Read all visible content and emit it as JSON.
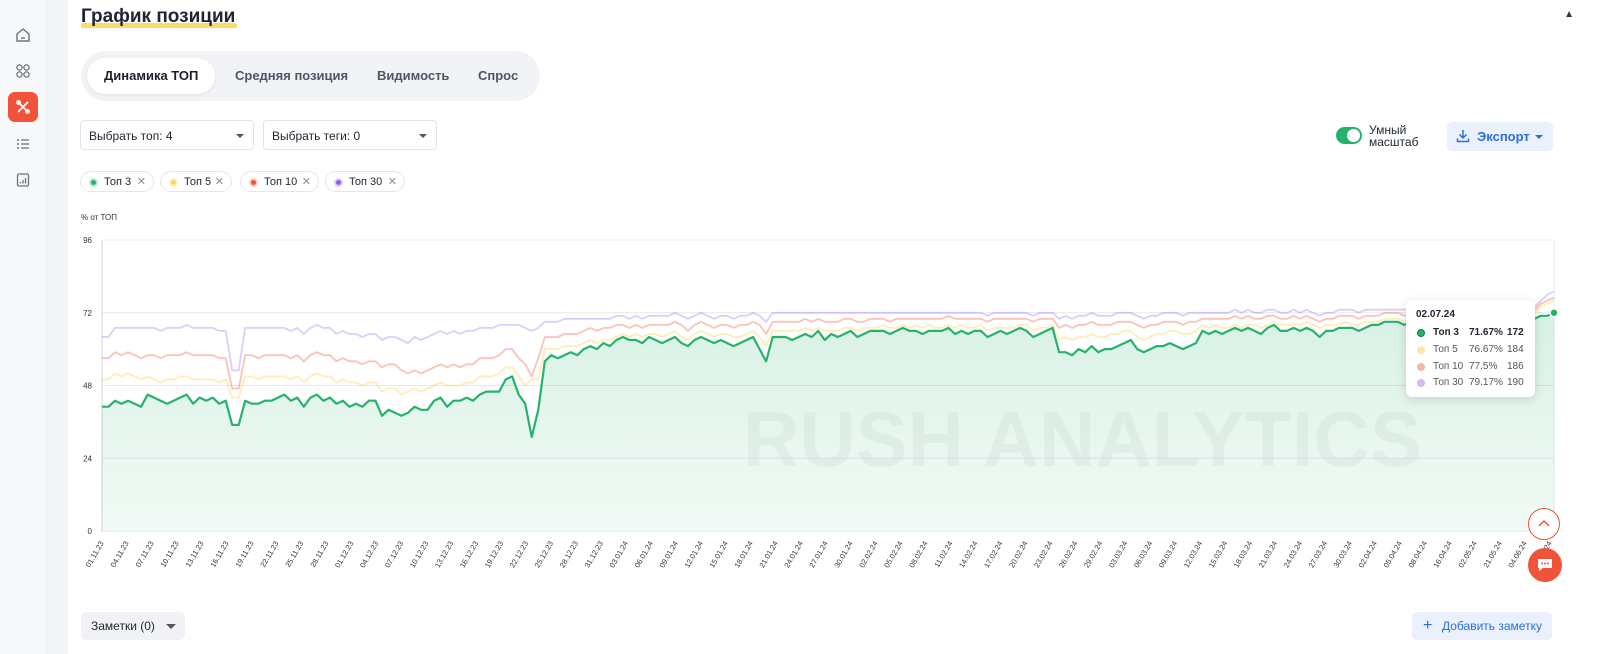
{
  "section": {
    "title": "График позиции"
  },
  "tabs": [
    {
      "label": "Динамика ТОП",
      "active": true
    },
    {
      "label": "Средняя позиция",
      "active": false
    },
    {
      "label": "Видимость",
      "active": false
    },
    {
      "label": "Спрос",
      "active": false
    }
  ],
  "filters": {
    "top_select": "Выбрать топ: 4",
    "tags_select": "Выбрать теги: 0"
  },
  "smart_scale": {
    "label": "Умный масштаб",
    "enabled": true
  },
  "export": {
    "label": "Экспорт"
  },
  "legend_chips": [
    {
      "label": "Топ 3",
      "color": "#26b26d"
    },
    {
      "label": "Топ 5",
      "color": "#ffd564"
    },
    {
      "label": "Топ 10",
      "color": "#f0533a"
    },
    {
      "label": "Топ 30",
      "color": "#8b5cf6"
    }
  ],
  "tooltip": {
    "date": "02.07.24",
    "rows": [
      {
        "name": "Топ 3",
        "percent": "71.67%",
        "count": "172",
        "color": "#26b26d"
      },
      {
        "name": "Топ 5",
        "percent": "76.67%",
        "count": "184",
        "color": "#ffe4a8"
      },
      {
        "name": "Топ 10",
        "percent": "77.5%",
        "count": "186",
        "color": "#f8b6aa"
      },
      {
        "name": "Топ 30",
        "percent": "79.17%",
        "count": "190",
        "color": "#cdbdf6"
      }
    ]
  },
  "footer": {
    "notes_label": "Заметки (0)",
    "add_note_label": "Добавить заметку"
  },
  "icons": {
    "sidebar": [
      "home-icon",
      "grid-icon",
      "tools-icon",
      "list-icon",
      "report-icon"
    ],
    "export": "download-icon",
    "fab": [
      "scroll-up-icon",
      "chat-icon"
    ]
  },
  "chart_data": {
    "type": "line",
    "ylabel": "% от ТОП",
    "ylim": [
      0,
      96
    ],
    "yticks": [
      0,
      24,
      48,
      72,
      96
    ],
    "grid": true,
    "watermark": "RUSH ANALYTICS",
    "xtick_labels": [
      "01.11.23",
      "04.11.23",
      "07.11.23",
      "10.11.23",
      "13.11.23",
      "16.11.23",
      "19.11.23",
      "22.11.23",
      "25.11.23",
      "28.11.23",
      "01.12.23",
      "04.12.23",
      "07.12.23",
      "10.12.23",
      "13.12.23",
      "16.12.23",
      "19.12.23",
      "22.12.23",
      "25.12.23",
      "28.12.23",
      "31.12.23",
      "03.01.24",
      "06.01.24",
      "09.01.24",
      "12.01.24",
      "15.01.24",
      "18.01.24",
      "21.01.24",
      "24.01.24",
      "27.01.24",
      "30.01.24",
      "02.02.24",
      "05.02.24",
      "08.02.24",
      "11.02.24",
      "14.02.24",
      "17.02.24",
      "20.02.24",
      "23.02.24",
      "26.02.24",
      "29.02.24",
      "03.03.24",
      "06.03.24",
      "09.03.24",
      "12.03.24",
      "15.03.24",
      "18.03.24",
      "21.03.24",
      "24.03.24",
      "27.03.24",
      "30.03.24",
      "02.04.24",
      "05.04.24",
      "08.04.24",
      "16.04.24",
      "02.05.24",
      "21.05.24",
      "04.06.24",
      "21.06.24"
    ],
    "series": [
      {
        "name": "Топ 3",
        "color": "#26b26d",
        "values": [
          41,
          41,
          43,
          42,
          43,
          42,
          41,
          45,
          44,
          43,
          42,
          43,
          44,
          45,
          42,
          44,
          43,
          44,
          42,
          43,
          35,
          35,
          43,
          42,
          42,
          43,
          43,
          44,
          45,
          43,
          44,
          41,
          44,
          45,
          43,
          44,
          42,
          43,
          41,
          42,
          41,
          43,
          43,
          38,
          40,
          39,
          38,
          39,
          41,
          40,
          40,
          43,
          44,
          41,
          43,
          43,
          44,
          43,
          45,
          46,
          46,
          46,
          50,
          51,
          45,
          42,
          31,
          40,
          56,
          58,
          57,
          58,
          59,
          58,
          60,
          61,
          60,
          62,
          61,
          63,
          64,
          63,
          63,
          62,
          64,
          63,
          62,
          63,
          64,
          62,
          61,
          63,
          64,
          63,
          62,
          63,
          62,
          61,
          62,
          63,
          64,
          60,
          56,
          64,
          64,
          64,
          63,
          64,
          65,
          64,
          66,
          63,
          65,
          64,
          65,
          66,
          64,
          65,
          66,
          66,
          66,
          65,
          66,
          67,
          66,
          66,
          65,
          66,
          66,
          66,
          67,
          65,
          66,
          65,
          66,
          66,
          64,
          65,
          66,
          65,
          66,
          67,
          66,
          64,
          65,
          66,
          67,
          59,
          59,
          58,
          60,
          59,
          61,
          59,
          60,
          60,
          61,
          62,
          63,
          60,
          59,
          60,
          61,
          61,
          62,
          61,
          60,
          61,
          62,
          66,
          65,
          66,
          65,
          66,
          67,
          66,
          67,
          66,
          65,
          67,
          68,
          66,
          66,
          67,
          66,
          67,
          66,
          64,
          66,
          66,
          67,
          67,
          67,
          66,
          67,
          68,
          68,
          69,
          69,
          69,
          68,
          69,
          68,
          67,
          68,
          68,
          68,
          69,
          67,
          68,
          68,
          68,
          68,
          69,
          70,
          70,
          69,
          70,
          70,
          69,
          70,
          71,
          71,
          72
        ]
      },
      {
        "name": "Топ 5",
        "color": "#ffd564",
        "values": [
          50,
          50,
          52,
          51,
          52,
          51,
          50,
          51,
          50,
          49,
          50,
          50,
          51,
          51,
          50,
          50,
          50,
          50,
          49,
          50,
          44,
          44,
          51,
          51,
          50,
          51,
          51,
          51,
          51,
          50,
          51,
          49,
          51,
          52,
          51,
          51,
          49,
          50,
          49,
          49,
          48,
          49,
          49,
          46,
          47,
          47,
          45,
          46,
          47,
          46,
          47,
          48,
          49,
          48,
          48,
          48,
          49,
          49,
          51,
          51,
          51,
          52,
          54,
          54,
          51,
          48,
          50,
          50,
          60,
          60,
          60,
          61,
          61,
          61,
          62,
          63,
          62,
          63,
          63,
          64,
          65,
          64,
          65,
          64,
          65,
          65,
          64,
          65,
          66,
          64,
          63,
          65,
          66,
          65,
          64,
          65,
          65,
          64,
          64,
          65,
          66,
          64,
          61,
          66,
          66,
          66,
          66,
          66,
          67,
          66,
          67,
          66,
          66,
          66,
          67,
          67,
          66,
          67,
          67,
          67,
          68,
          67,
          67,
          68,
          67,
          68,
          67,
          68,
          67,
          67,
          68,
          67,
          68,
          67,
          67,
          68,
          66,
          67,
          67,
          67,
          67,
          68,
          68,
          66,
          67,
          67,
          68,
          63,
          64,
          63,
          64,
          64,
          65,
          64,
          64,
          65,
          65,
          66,
          66,
          64,
          63,
          64,
          65,
          65,
          66,
          66,
          65,
          65,
          66,
          68,
          67,
          68,
          67,
          67,
          68,
          67,
          68,
          68,
          67,
          68,
          69,
          68,
          68,
          68,
          68,
          69,
          68,
          67,
          68,
          68,
          68,
          69,
          68,
          68,
          69,
          69,
          69,
          70,
          70,
          70,
          69,
          70,
          70,
          69,
          70,
          70,
          70,
          70,
          69,
          70,
          70,
          70,
          70,
          71,
          72,
          72,
          71,
          72,
          72,
          71,
          72,
          74,
          75,
          76
        ]
      },
      {
        "name": "Топ 10",
        "color": "#f0533a",
        "values": [
          57,
          57,
          59,
          58,
          59,
          58,
          57,
          58,
          58,
          57,
          58,
          58,
          58,
          59,
          58,
          58,
          58,
          58,
          57,
          57,
          47,
          47,
          58,
          58,
          57,
          58,
          58,
          58,
          58,
          57,
          58,
          56,
          58,
          59,
          58,
          58,
          56,
          57,
          56,
          56,
          55,
          56,
          56,
          54,
          55,
          55,
          53,
          52,
          53,
          52,
          53,
          54,
          55,
          54,
          55,
          54,
          55,
          55,
          57,
          57,
          57,
          58,
          60,
          60,
          57,
          55,
          51,
          57,
          64,
          64,
          64,
          65,
          65,
          65,
          66,
          67,
          66,
          67,
          67,
          68,
          68,
          67,
          68,
          67,
          68,
          68,
          68,
          68,
          69,
          68,
          66,
          68,
          69,
          68,
          67,
          68,
          68,
          67,
          68,
          68,
          69,
          68,
          65,
          69,
          69,
          69,
          69,
          69,
          70,
          69,
          70,
          69,
          69,
          69,
          70,
          70,
          69,
          69,
          70,
          70,
          70,
          69,
          70,
          70,
          70,
          70,
          70,
          70,
          70,
          70,
          71,
          70,
          70,
          70,
          70,
          70,
          69,
          70,
          70,
          70,
          70,
          70,
          70,
          69,
          70,
          70,
          70,
          67,
          68,
          67,
          68,
          68,
          69,
          68,
          68,
          68,
          69,
          69,
          69,
          68,
          67,
          68,
          68,
          69,
          69,
          69,
          68,
          69,
          69,
          70,
          70,
          70,
          70,
          70,
          71,
          70,
          71,
          70,
          70,
          71,
          71,
          70,
          70,
          71,
          70,
          71,
          70,
          69,
          70,
          70,
          71,
          71,
          71,
          70,
          71,
          71,
          71,
          72,
          72,
          72,
          71,
          72,
          72,
          71,
          72,
          72,
          72,
          72,
          71,
          72,
          72,
          72,
          72,
          72,
          73,
          73,
          73,
          73,
          73,
          72,
          73,
          75,
          76,
          77
        ]
      },
      {
        "name": "Топ 30",
        "color": "#8b5cf6",
        "values": [
          64,
          64,
          67,
          67,
          67,
          67,
          67,
          67,
          67,
          66,
          67,
          67,
          67,
          68,
          67,
          67,
          67,
          67,
          66,
          66,
          53,
          53,
          67,
          67,
          67,
          67,
          67,
          67,
          67,
          66,
          67,
          65,
          67,
          68,
          67,
          67,
          65,
          66,
          65,
          65,
          64,
          65,
          65,
          63,
          64,
          64,
          63,
          62,
          64,
          63,
          64,
          65,
          66,
          65,
          66,
          65,
          66,
          66,
          67,
          67,
          67,
          68,
          68,
          68,
          68,
          67,
          66,
          67,
          69,
          69,
          69,
          70,
          70,
          70,
          70,
          70,
          70,
          70,
          70,
          71,
          71,
          70,
          71,
          70,
          71,
          71,
          71,
          71,
          72,
          71,
          70,
          71,
          72,
          71,
          70,
          71,
          71,
          70,
          71,
          71,
          72,
          71,
          69,
          72,
          72,
          72,
          72,
          72,
          72,
          72,
          72,
          72,
          72,
          72,
          72,
          72,
          72,
          72,
          72,
          72,
          72,
          72,
          72,
          72,
          72,
          72,
          72,
          72,
          72,
          72,
          72,
          72,
          72,
          72,
          72,
          72,
          71,
          72,
          72,
          72,
          72,
          72,
          72,
          71,
          72,
          72,
          72,
          70,
          71,
          70,
          71,
          71,
          72,
          71,
          71,
          71,
          72,
          72,
          72,
          71,
          70,
          71,
          71,
          72,
          72,
          72,
          71,
          72,
          72,
          72,
          72,
          72,
          72,
          72,
          73,
          72,
          73,
          72,
          72,
          73,
          73,
          72,
          72,
          73,
          72,
          73,
          72,
          71,
          72,
          72,
          73,
          73,
          73,
          72,
          73,
          73,
          73,
          73,
          73,
          73,
          73,
          73,
          73,
          73,
          73,
          73,
          73,
          73,
          73,
          73,
          73,
          73,
          73,
          73,
          74,
          74,
          74,
          74,
          74,
          73,
          74,
          76,
          78,
          79
        ]
      }
    ]
  }
}
